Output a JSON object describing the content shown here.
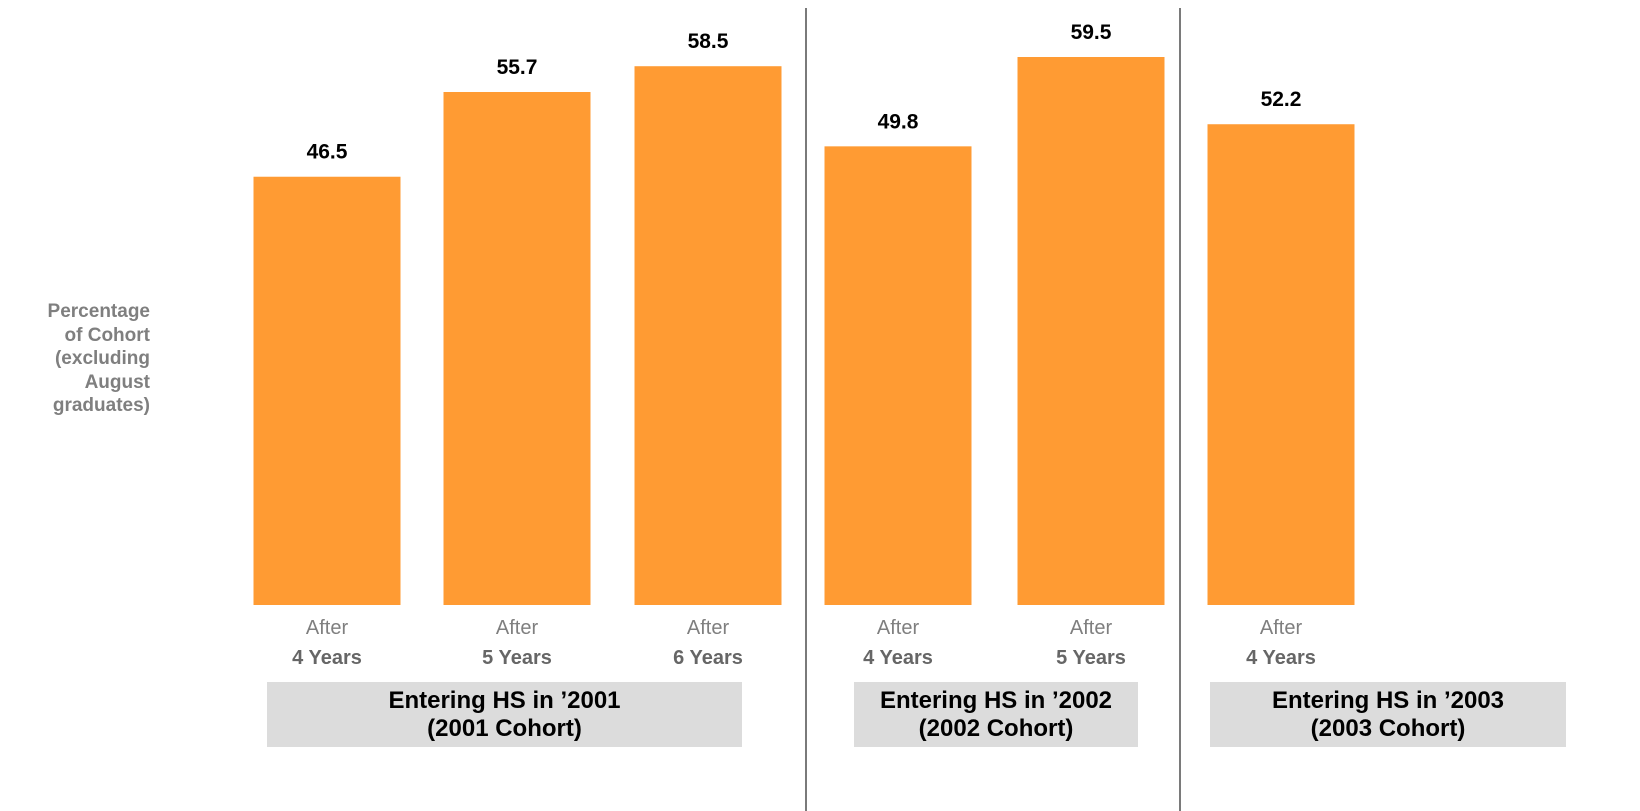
{
  "chart_data": {
    "type": "bar",
    "ylabel_lines": [
      "Percentage",
      "of Cohort",
      "(excluding",
      "August",
      "graduates)"
    ],
    "ylim": [
      0,
      70
    ],
    "grid": false,
    "legend": "none",
    "bar_color": "#ff9b33",
    "group_box_color": "#dcdcdc",
    "divider_color": "#595959",
    "groups": [
      {
        "label_line1": "Entering HS in ’2001",
        "label_line2": "(2001 Cohort)",
        "bars": [
          {
            "top": "After",
            "bottom": "4 Years",
            "value": 46.5,
            "value_label": "46.5"
          },
          {
            "top": "After",
            "bottom": "5 Years",
            "value": 55.7,
            "value_label": "55.7"
          },
          {
            "top": "After",
            "bottom": "6 Years",
            "value": 58.5,
            "value_label": "58.5"
          }
        ]
      },
      {
        "label_line1": "Entering HS in ’2002",
        "label_line2": "(2002 Cohort)",
        "bars": [
          {
            "top": "After",
            "bottom": "4 Years",
            "value": 49.8,
            "value_label": "49.8"
          },
          {
            "top": "After",
            "bottom": "5 Years",
            "value": 59.5,
            "value_label": "59.5"
          }
        ]
      },
      {
        "label_line1": "Entering HS in ’2003",
        "label_line2": "(2003 Cohort)",
        "bars": [
          {
            "top": "After",
            "bottom": "4 Years",
            "value": 52.2,
            "value_label": "52.2"
          }
        ]
      }
    ]
  }
}
